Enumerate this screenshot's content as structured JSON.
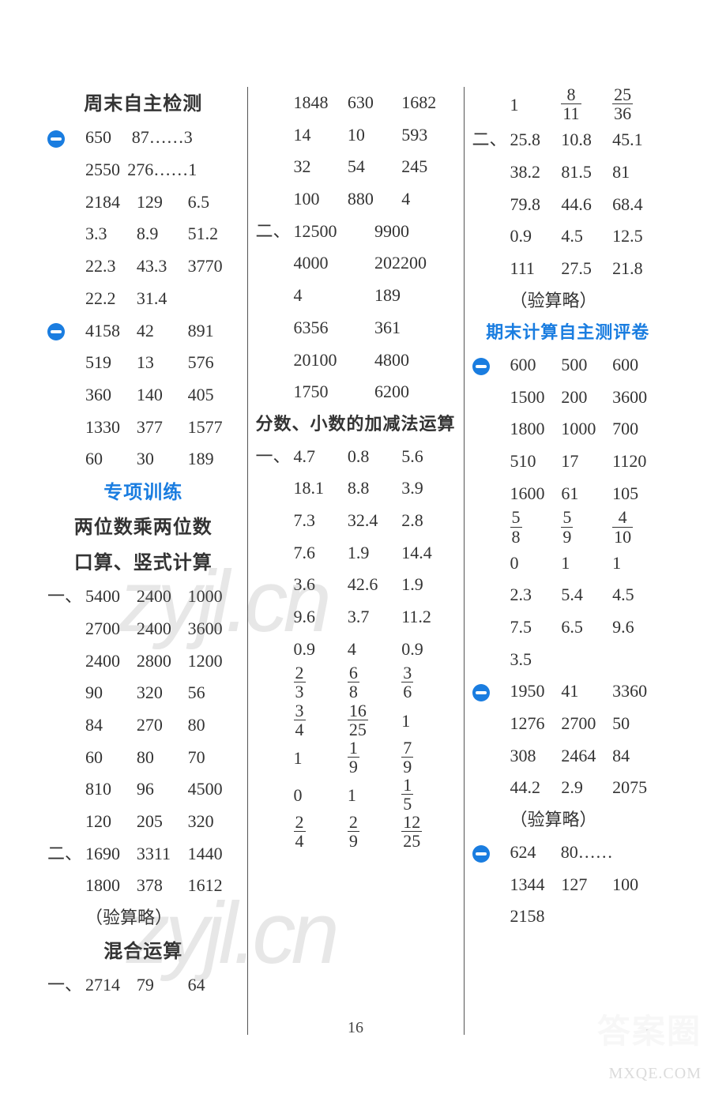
{
  "pageNumber": "16",
  "watermark1": "zyjl.cn",
  "watermark2": "zyjl.cn",
  "brandTop": "答案圈",
  "brandBottom": "MXQE.COM",
  "col1": {
    "h1": "周末自主检测",
    "b1": [
      [
        "650",
        "87……3",
        ""
      ],
      [
        "2550",
        "276……1",
        ""
      ],
      [
        "2184",
        "129",
        "6.5"
      ],
      [
        "3.3",
        "8.9",
        "51.2"
      ],
      [
        "22.3",
        "43.3",
        "3770"
      ],
      [
        "22.2",
        "31.4",
        ""
      ]
    ],
    "b2": [
      [
        "4158",
        "42",
        "891"
      ],
      [
        "519",
        "13",
        "576"
      ],
      [
        "360",
        "140",
        "405"
      ],
      [
        "1330",
        "377",
        "1577"
      ],
      [
        "60",
        "30",
        "189"
      ]
    ],
    "h2": "专项训练",
    "h3": "两位数乘两位数",
    "h4": "口算、竖式计算",
    "s1_prefix": "一、",
    "s1": [
      [
        "5400",
        "2400",
        "1000"
      ],
      [
        "2700",
        "2400",
        "3600"
      ],
      [
        "2400",
        "2800",
        "1200"
      ],
      [
        "90",
        "320",
        "56"
      ],
      [
        "84",
        "270",
        "80"
      ],
      [
        "60",
        "80",
        "70"
      ],
      [
        "810",
        "96",
        "4500"
      ],
      [
        "120",
        "205",
        "320"
      ]
    ],
    "s2_prefix": "二、",
    "s2": [
      [
        "1690",
        "3311",
        "1440"
      ],
      [
        "1800",
        "378",
        "1612"
      ]
    ],
    "note1": "（验算略）",
    "h5": "混合运算",
    "s3_prefix": "一、",
    "s3": [
      [
        "2714",
        "79",
        "64"
      ]
    ]
  },
  "col2": {
    "top3": [
      [
        "1848",
        "630",
        "1682"
      ],
      [
        "14",
        "10",
        "593"
      ],
      [
        "32",
        "54",
        "245"
      ],
      [
        "100",
        "880",
        "4"
      ]
    ],
    "s2_prefix": "二、",
    "top2": [
      [
        "12500",
        "9900"
      ],
      [
        "4000",
        "202200"
      ],
      [
        "4",
        "189"
      ],
      [
        "6356",
        "361"
      ],
      [
        "20100",
        "4800"
      ],
      [
        "1750",
        "6200"
      ]
    ],
    "h1": "分数、小数的加减法运算",
    "d1_prefix": "一、",
    "d1": [
      [
        "4.7",
        "0.8",
        "5.6"
      ],
      [
        "18.1",
        "8.8",
        "3.9"
      ],
      [
        "7.3",
        "32.4",
        "2.8"
      ],
      [
        "7.6",
        "1.9",
        "14.4"
      ],
      [
        "3.6",
        "42.6",
        "1.9"
      ],
      [
        "9.6",
        "3.7",
        "11.2"
      ],
      [
        "0.9",
        "4",
        "0.9"
      ]
    ],
    "f1": [
      [
        {
          "n": "2",
          "d": "3"
        },
        {
          "n": "6",
          "d": "8"
        },
        {
          "n": "3",
          "d": "6"
        }
      ],
      [
        {
          "n": "3",
          "d": "4"
        },
        {
          "n": "16",
          "d": "25"
        },
        "1"
      ],
      [
        "1",
        {
          "n": "1",
          "d": "9"
        },
        {
          "n": "7",
          "d": "9"
        }
      ],
      [
        "0",
        "1",
        {
          "n": "1",
          "d": "5"
        }
      ],
      [
        {
          "n": "2",
          "d": "4"
        },
        {
          "n": "2",
          "d": "9"
        },
        {
          "n": "12",
          "d": "25"
        }
      ]
    ]
  },
  "col3": {
    "fr1": [
      "1",
      {
        "n": "8",
        "d": "11"
      },
      {
        "n": "25",
        "d": "36"
      }
    ],
    "s2_prefix": "二、",
    "b1": [
      [
        "25.8",
        "10.8",
        "45.1"
      ],
      [
        "38.2",
        "81.5",
        "81"
      ],
      [
        "79.8",
        "44.6",
        "68.4"
      ],
      [
        "0.9",
        "4.5",
        "12.5"
      ],
      [
        "111",
        "27.5",
        "21.8"
      ]
    ],
    "note1": "（验算略）",
    "h1": "期末计算自主测评卷",
    "m1": [
      [
        "600",
        "500",
        "600"
      ],
      [
        "1500",
        "200",
        "3600"
      ],
      [
        "1800",
        "1000",
        "700"
      ],
      [
        "510",
        "17",
        "1120"
      ],
      [
        "1600",
        "61",
        "105"
      ]
    ],
    "f1": [
      [
        {
          "n": "5",
          "d": "8"
        },
        {
          "n": "5",
          "d": "9"
        },
        {
          "n": "4",
          "d": "10"
        }
      ],
      [
        "0",
        "1",
        "1"
      ],
      [
        "2.3",
        "5.4",
        "4.5"
      ],
      [
        "7.5",
        "6.5",
        "9.6"
      ],
      [
        "3.5",
        "",
        ""
      ]
    ],
    "m2": [
      [
        "1950",
        "41",
        "3360"
      ],
      [
        "1276",
        "2700",
        "50"
      ],
      [
        "308",
        "2464",
        "84"
      ],
      [
        "44.2",
        "2.9",
        "2075"
      ]
    ],
    "note2": "（验算略）",
    "m3": [
      [
        "624",
        "80……",
        ""
      ],
      [
        "1344",
        "127",
        "100"
      ],
      [
        "2158",
        "",
        ""
      ]
    ]
  }
}
